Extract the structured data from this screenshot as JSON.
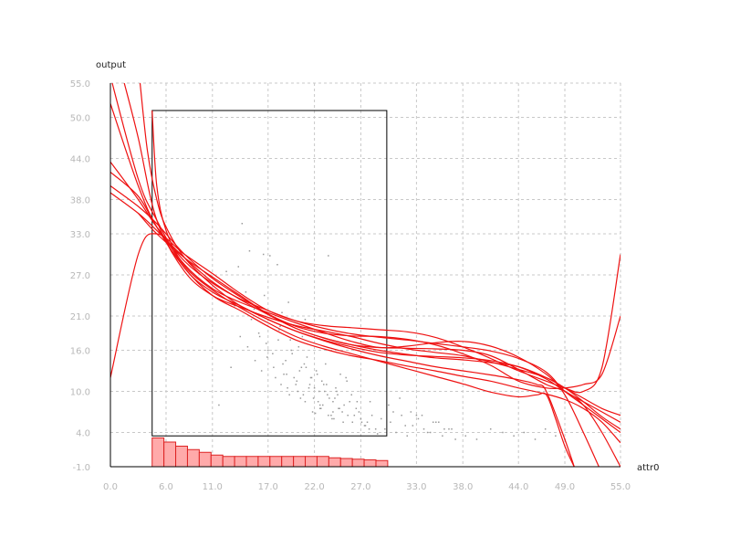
{
  "chart_data": {
    "type": "line",
    "xlabel": "attr0",
    "ylabel": "output",
    "xlim": [
      0.0,
      55.0
    ],
    "ylim": [
      -1.0,
      55.0
    ],
    "x_ticks": [
      "0.0",
      "6.0",
      "11.0",
      "17.0",
      "22.0",
      "27.0",
      "33.0",
      "38.0",
      "44.0",
      "49.0",
      "55.0"
    ],
    "y_ticks": [
      "55.0",
      "50.0",
      "44.0",
      "38.0",
      "33.0",
      "27.0",
      "21.0",
      "16.0",
      "10.0",
      "4.0",
      "-1.0"
    ],
    "grid": true,
    "selection_box": {
      "x": [
        4.5,
        29.8
      ],
      "y": [
        3.5,
        51.0
      ]
    },
    "histogram": {
      "bin_start": 4.5,
      "bin_width": 1.27,
      "counts": [
        4.2,
        3.6,
        3.0,
        2.5,
        2.1,
        1.7,
        1.5,
        1.5,
        1.5,
        1.5,
        1.5,
        1.5,
        1.5,
        1.5,
        1.5,
        1.3,
        1.2,
        1.1,
        1.0,
        0.9
      ]
    },
    "series": [
      {
        "x": [
          0,
          3,
          5,
          8,
          11,
          14,
          17,
          20,
          23,
          26,
          29,
          32,
          35,
          38,
          41,
          44,
          47,
          49,
          51,
          53,
          55
        ],
        "y": [
          43.5,
          38,
          34,
          29,
          25.8,
          23.5,
          21.8,
          20.3,
          19.2,
          18.4,
          17.9,
          17.5,
          17,
          16.5,
          15.9,
          14.8,
          12.8,
          9.5,
          4,
          -2,
          -8
        ]
      },
      {
        "x": [
          0,
          3,
          5,
          8,
          11,
          14,
          17,
          20,
          23,
          26,
          29,
          32,
          35,
          38,
          41,
          44,
          47,
          49,
          51,
          53,
          55
        ],
        "y": [
          40,
          37,
          34.5,
          30,
          26.5,
          23.8,
          21.3,
          19.5,
          18.5,
          18.1,
          18,
          17.6,
          16.8,
          15.5,
          13.8,
          11.5,
          10.5,
          10.5,
          11,
          12.5,
          21
        ]
      },
      {
        "x": [
          0,
          3,
          5,
          8,
          11,
          14,
          17,
          20,
          23,
          26,
          29,
          32,
          35,
          38,
          41,
          44,
          47,
          49,
          51,
          53,
          55
        ],
        "y": [
          39,
          36,
          33.5,
          29.5,
          26,
          23.4,
          21.2,
          19.2,
          17.8,
          16.8,
          16,
          15.4,
          14.9,
          14.6,
          14.2,
          13.6,
          12,
          10.5,
          9,
          7.5,
          6.5
        ]
      },
      {
        "x": [
          0,
          3,
          5,
          8,
          11,
          14,
          17,
          20,
          23,
          26,
          29,
          32,
          35,
          38,
          41,
          44,
          47,
          49,
          51,
          53,
          55
        ],
        "y": [
          42,
          38.5,
          34,
          28.5,
          25,
          23,
          21.5,
          20,
          18.6,
          17.3,
          16.4,
          16.6,
          17.1,
          17.3,
          16.6,
          15,
          12.5,
          10,
          8,
          6,
          4
        ]
      },
      {
        "x": [
          0,
          3,
          5,
          8,
          11,
          14,
          17,
          20,
          23,
          26,
          29,
          32,
          35,
          38,
          41,
          44,
          47,
          49,
          51,
          53,
          55
        ],
        "y": [
          56,
          41,
          35,
          28,
          24.5,
          22.5,
          20.5,
          18.8,
          17.5,
          16.5,
          15.7,
          15.3,
          15.1,
          14.9,
          14.5,
          13.6,
          11.8,
          10,
          8.5,
          7,
          5.5
        ]
      },
      {
        "x": [
          0,
          3,
          5,
          8,
          11,
          14,
          17,
          20,
          23,
          26,
          29,
          32,
          35,
          38,
          41,
          44,
          47,
          49,
          51,
          53,
          55
        ],
        "y": [
          52,
          40,
          34,
          28,
          24,
          21.8,
          19.5,
          17.5,
          16.2,
          15.2,
          14.5,
          13.7,
          13,
          12.2,
          11.5,
          10.5,
          9.6,
          8.8,
          7.5,
          5.5,
          2.5
        ]
      },
      {
        "x": [
          0,
          3,
          5,
          8,
          11,
          14,
          17,
          20,
          23,
          26,
          29,
          32,
          35,
          38,
          41,
          44,
          47,
          49,
          51,
          53,
          55
        ],
        "y": [
          12,
          30,
          33,
          30,
          27.2,
          24.3,
          21.8,
          20.3,
          19.6,
          19.3,
          19,
          18.7,
          17.9,
          16.5,
          14.8,
          13,
          11.5,
          10.5,
          10,
          13.5,
          30
        ]
      },
      {
        "x": [
          1.5,
          3,
          5,
          8,
          11,
          14,
          17,
          20,
          23,
          26,
          29,
          32,
          35,
          38,
          41,
          44,
          47,
          49,
          51,
          53,
          55
        ],
        "y": [
          55,
          47,
          35,
          27.5,
          24,
          22.3,
          20.8,
          19.6,
          18.8,
          18,
          17,
          16.2,
          15.7,
          15.2,
          14.3,
          13.2,
          12,
          10.5,
          8.5,
          6.3,
          4.5
        ]
      },
      {
        "x": [
          3.2,
          4,
          5,
          6,
          8,
          11,
          14,
          17,
          20,
          23,
          26,
          29,
          32,
          35,
          38,
          41,
          44,
          46,
          47,
          49,
          50.5
        ],
        "y": [
          55,
          45,
          38,
          34,
          29.5,
          25.5,
          22.5,
          20.5,
          18.8,
          17.4,
          16.2,
          15.2,
          14.4,
          13.6,
          13,
          12.4,
          11.7,
          11,
          10,
          3,
          -3
        ]
      },
      {
        "x": [
          4.5,
          5,
          6,
          8,
          11,
          14,
          17,
          20,
          23,
          26,
          29,
          32,
          35,
          38,
          41,
          44,
          46,
          47,
          48,
          49,
          50
        ],
        "y": [
          51,
          40,
          33.5,
          28.3,
          24.8,
          22.2,
          20,
          18,
          16.6,
          15.5,
          14.4,
          13.3,
          12.2,
          11.1,
          9.9,
          9.2,
          9.5,
          9.5,
          6,
          2,
          -1
        ]
      },
      {
        "x": [
          3,
          5,
          8,
          11,
          14,
          17,
          20,
          23,
          26,
          29,
          32,
          35,
          38,
          41,
          44,
          47,
          49,
          51,
          53,
          55
        ],
        "y": [
          36,
          33,
          29.5,
          26.7,
          24,
          21.3,
          19.2,
          17.8,
          16.8,
          16.4,
          16.3,
          16.2,
          16,
          15.2,
          13.2,
          11,
          10,
          8,
          4,
          -1
        ]
      }
    ],
    "scatter": {
      "x": [
        14.2,
        15.0,
        13.8,
        16.5,
        17.2,
        18.0,
        19.2,
        21.0,
        23.5,
        12.5,
        11.7,
        13.0,
        14.6,
        15.5,
        16.0,
        16.8,
        17.5,
        18.2,
        18.6,
        19.0,
        19.5,
        20.0,
        20.4,
        20.8,
        21.2,
        21.6,
        22.0,
        22.4,
        22.8,
        23.2,
        23.6,
        24.0,
        24.4,
        24.8,
        25.2,
        25.6,
        26.0,
        26.5,
        27.0,
        27.5,
        28.0,
        28.6,
        29.2,
        14.0,
        14.8,
        15.6,
        16.3,
        17.0,
        17.8,
        18.4,
        18.9,
        19.3,
        19.8,
        20.2,
        20.6,
        21.0,
        21.5,
        21.9,
        22.3,
        22.7,
        23.1,
        23.5,
        24.0,
        24.5,
        25.0,
        25.5,
        26.1,
        26.8,
        27.4,
        28.2,
        15.2,
        16.1,
        16.9,
        17.6,
        18.1,
        18.7,
        19.1,
        19.6,
        20.1,
        20.5,
        20.9,
        21.4,
        21.8,
        22.2,
        22.6,
        23.0,
        23.4,
        23.9,
        24.3,
        24.7,
        25.1,
        25.8,
        26.3,
        27.1,
        27.9,
        28.8,
        17.3,
        18.3,
        19.4,
        20.3,
        21.1,
        21.7,
        22.1,
        22.5,
        22.9,
        23.3,
        23.8,
        24.2,
        24.6,
        25.4,
        26.6,
        27.7,
        13.4,
        16.6,
        18.5,
        20.7,
        22.6,
        24.1,
        29.6,
        30.2,
        30.8,
        31.4,
        32.0,
        32.6,
        33.2,
        33.8,
        34.5,
        35.1,
        35.8,
        36.5,
        37.2,
        30.5,
        31.8,
        33.0,
        34.2,
        35.4,
        36.8,
        38.3,
        39.5,
        41.0,
        42.3,
        43.5,
        44.6,
        45.8,
        46.9,
        48.0,
        49.0,
        30.0,
        31.2,
        32.4,
        33.6,
        34.8,
        36.0
      ],
      "y": [
        34.5,
        30.5,
        28.2,
        30.0,
        29.8,
        28.5,
        23.0,
        20.5,
        29.8,
        27.5,
        8.0,
        13.5,
        24.5,
        22.0,
        18.5,
        17.0,
        15.5,
        19.0,
        14.0,
        12.5,
        16.0,
        11.0,
        13.0,
        9.5,
        15.0,
        12.0,
        10.5,
        8.5,
        11.5,
        14.0,
        9.0,
        7.0,
        10.0,
        12.5,
        8.0,
        6.5,
        9.5,
        7.5,
        6.0,
        5.0,
        8.5,
        4.5,
        6.0,
        18.0,
        16.5,
        14.5,
        13.0,
        16.0,
        12.0,
        11.0,
        14.5,
        9.5,
        12.0,
        10.0,
        13.5,
        8.5,
        11.0,
        9.0,
        12.5,
        7.5,
        10.0,
        6.5,
        8.5,
        9.5,
        7.0,
        11.5,
        5.5,
        7.0,
        5.0,
        6.5,
        20.5,
        18.0,
        15.0,
        13.5,
        17.5,
        12.5,
        10.5,
        15.5,
        11.5,
        9.0,
        14.0,
        10.5,
        7.0,
        13.0,
        8.0,
        11.0,
        9.5,
        6.0,
        10.5,
        7.5,
        5.5,
        8.5,
        6.5,
        5.5,
        4.5,
        3.8,
        21.0,
        19.5,
        17.5,
        16.5,
        13.5,
        12.0,
        6.8,
        10.0,
        8.0,
        11.0,
        6.5,
        9.0,
        7.5,
        12.0,
        8.5,
        5.5,
        22.5,
        24.0,
        21.5,
        18.0,
        7.5,
        6.0,
        4.5,
        5.5,
        4.0,
        6.5,
        3.5,
        5.0,
        6.0,
        4.5,
        4.0,
        5.5,
        3.5,
        4.5,
        3.0,
        7.0,
        5.0,
        6.5,
        4.0,
        5.5,
        4.5,
        3.5,
        3.0,
        4.5,
        4.0,
        3.5,
        4.0,
        3.0,
        4.5,
        3.5,
        3.0,
        8.0,
        9.0,
        7.0,
        6.5,
        5.5,
        4.5
      ]
    }
  }
}
